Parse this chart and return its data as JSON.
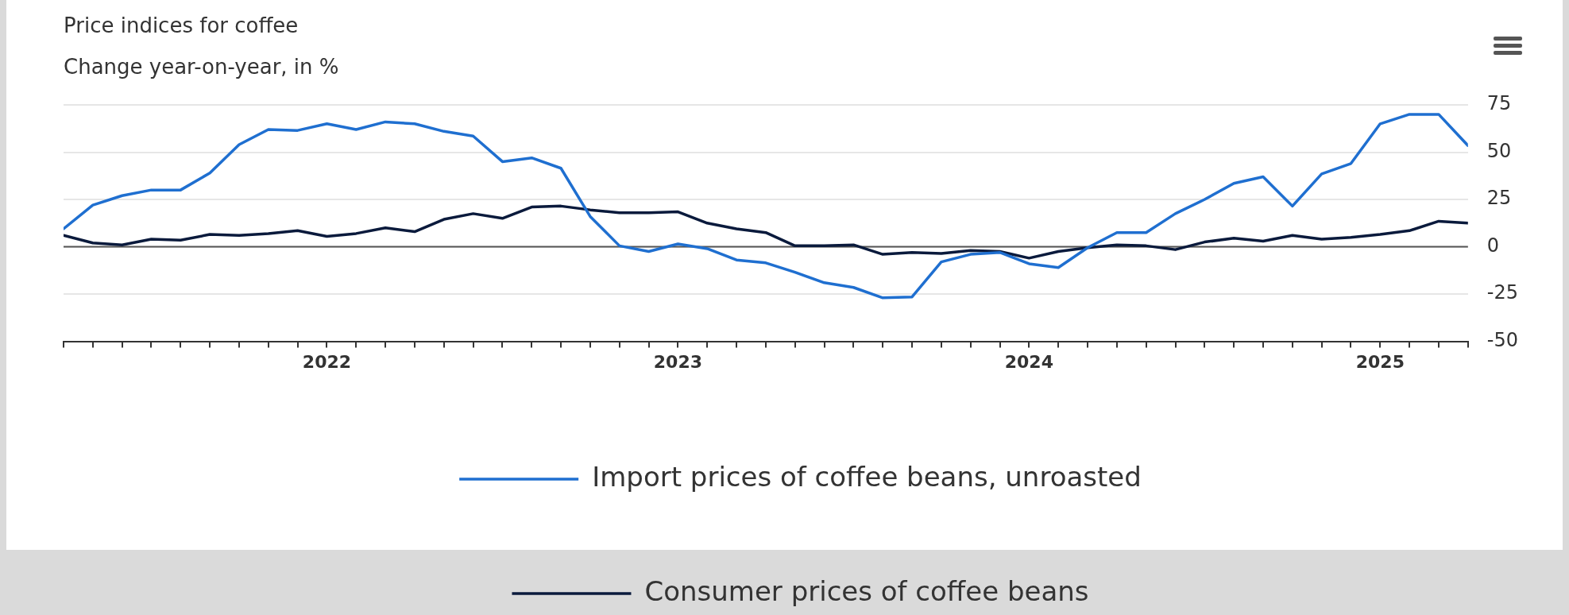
{
  "chart_data": {
    "type": "line",
    "title": "Price indices for coffee",
    "subtitle": "Change year-on-year, in %",
    "x": [
      "2021-04",
      "2021-05",
      "2021-06",
      "2021-07",
      "2021-08",
      "2021-09",
      "2021-10",
      "2021-11",
      "2021-12",
      "2022-01",
      "2022-02",
      "2022-03",
      "2022-04",
      "2022-05",
      "2022-06",
      "2022-07",
      "2022-08",
      "2022-09",
      "2022-10",
      "2022-11",
      "2022-12",
      "2023-01",
      "2023-02",
      "2023-03",
      "2023-04",
      "2023-05",
      "2023-06",
      "2023-07",
      "2023-08",
      "2023-09",
      "2023-10",
      "2023-11",
      "2023-12",
      "2024-01",
      "2024-02",
      "2024-03",
      "2024-04",
      "2024-05",
      "2024-06",
      "2024-07",
      "2024-08",
      "2024-09",
      "2024-10",
      "2024-11",
      "2024-12",
      "2025-01",
      "2025-02",
      "2025-03",
      "2025-04"
    ],
    "series": [
      {
        "name": "Import prices of coffee beans, unroasted",
        "color": "#1f6fd0",
        "values": [
          9.5,
          22,
          27,
          30,
          30,
          39,
          54,
          62,
          61.5,
          65,
          62,
          66,
          65,
          61,
          58.5,
          45,
          47,
          41.5,
          16,
          0.5,
          -2.5,
          1.5,
          -1,
          -7,
          -8.5,
          -13.5,
          -19,
          -21.5,
          -27,
          -26.5,
          -8,
          -4,
          -3,
          -9,
          -11,
          -0.5,
          7.5,
          7.5,
          17.5,
          25,
          33.5,
          37,
          21.5,
          38.5,
          44,
          65,
          70,
          70,
          53.5
        ]
      },
      {
        "name": "Consumer prices of coffee beans",
        "color": "#0a1a3c",
        "values": [
          6,
          2,
          1,
          4,
          3.5,
          6.5,
          6,
          7,
          8.5,
          5.5,
          7,
          10,
          8,
          14.5,
          17.5,
          15,
          21,
          21.5,
          19.5,
          18,
          18,
          18.5,
          12.5,
          9.5,
          7.5,
          0.5,
          0.5,
          1,
          -4,
          -3,
          -3.5,
          -2,
          -2.5,
          -6,
          -2.5,
          -0.5,
          1,
          0.5,
          -1.5,
          2.5,
          4.5,
          3,
          6,
          4,
          5,
          6.5,
          8.5,
          13.5,
          12.5
        ]
      }
    ],
    "xlim": [
      "2021-04",
      "2025-04"
    ],
    "xticks": [
      {
        "value": "2021-04",
        "label": null
      },
      {
        "value": "2021-05",
        "label": null
      },
      {
        "value": "2021-06",
        "label": null
      },
      {
        "value": "2021-07",
        "label": null
      },
      {
        "value": "2021-08",
        "label": null
      },
      {
        "value": "2021-09",
        "label": null
      },
      {
        "value": "2021-10",
        "label": null
      },
      {
        "value": "2021-11",
        "label": null
      },
      {
        "value": "2021-12",
        "label": null
      },
      {
        "value": "2022-01",
        "label": "2022"
      },
      {
        "value": "2022-02",
        "label": null
      },
      {
        "value": "2022-03",
        "label": null
      },
      {
        "value": "2022-04",
        "label": null
      },
      {
        "value": "2022-05",
        "label": null
      },
      {
        "value": "2022-06",
        "label": null
      },
      {
        "value": "2022-07",
        "label": null
      },
      {
        "value": "2022-08",
        "label": null
      },
      {
        "value": "2022-09",
        "label": null
      },
      {
        "value": "2022-10",
        "label": null
      },
      {
        "value": "2022-11",
        "label": null
      },
      {
        "value": "2022-12",
        "label": null
      },
      {
        "value": "2023-01",
        "label": "2023"
      },
      {
        "value": "2023-02",
        "label": null
      },
      {
        "value": "2023-03",
        "label": null
      },
      {
        "value": "2023-04",
        "label": null
      },
      {
        "value": "2023-05",
        "label": null
      },
      {
        "value": "2023-06",
        "label": null
      },
      {
        "value": "2023-07",
        "label": null
      },
      {
        "value": "2023-08",
        "label": null
      },
      {
        "value": "2023-09",
        "label": null
      },
      {
        "value": "2023-10",
        "label": null
      },
      {
        "value": "2023-11",
        "label": null
      },
      {
        "value": "2023-12",
        "label": null
      },
      {
        "value": "2024-01",
        "label": "2024"
      },
      {
        "value": "2024-02",
        "label": null
      },
      {
        "value": "2024-03",
        "label": null
      },
      {
        "value": "2024-04",
        "label": null
      },
      {
        "value": "2024-05",
        "label": null
      },
      {
        "value": "2024-06",
        "label": null
      },
      {
        "value": "2024-07",
        "label": null
      },
      {
        "value": "2024-08",
        "label": null
      },
      {
        "value": "2024-09",
        "label": null
      },
      {
        "value": "2024-10",
        "label": null
      },
      {
        "value": "2024-11",
        "label": null
      },
      {
        "value": "2024-12",
        "label": null
      },
      {
        "value": "2025-01",
        "label": "2025"
      },
      {
        "value": "2025-02",
        "label": null
      },
      {
        "value": "2025-03",
        "label": null
      },
      {
        "value": "2025-04",
        "label": null
      }
    ],
    "ylim": [
      -50,
      75
    ],
    "yticks": [
      -50,
      -25,
      0,
      25,
      50,
      75
    ],
    "ref_lines": [
      {
        "axis": "y",
        "value": 0,
        "color": "#555555"
      }
    ],
    "grid": "y",
    "legend": "bottom",
    "marker": "none",
    "line_style": "solid"
  }
}
